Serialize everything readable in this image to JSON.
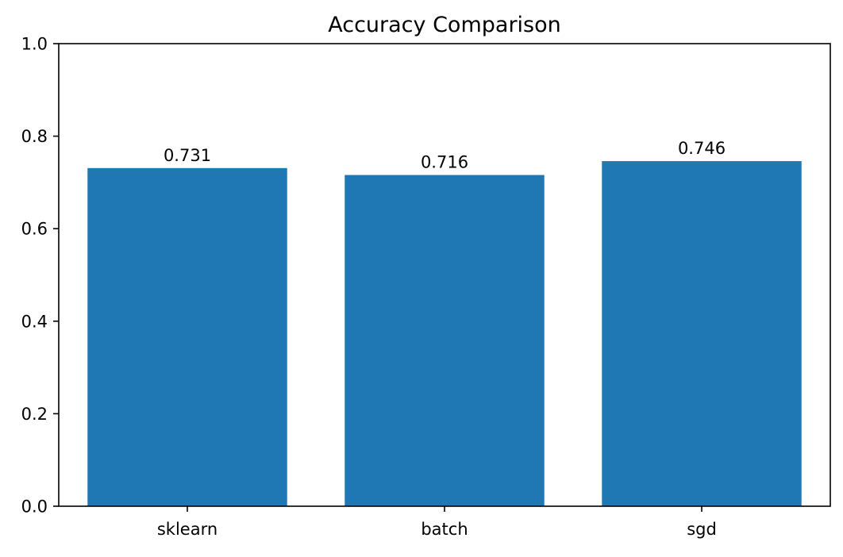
{
  "chart_data": {
    "type": "bar",
    "title": "Accuracy Comparison",
    "xlabel": "",
    "ylabel": "",
    "categories": [
      "sklearn",
      "batch",
      "sgd"
    ],
    "values": [
      0.731,
      0.716,
      0.746
    ],
    "value_labels": [
      "0.731",
      "0.716",
      "0.746"
    ],
    "ylim": [
      0,
      1.0
    ],
    "yticks": [
      0.0,
      0.2,
      0.4,
      0.6,
      0.8,
      1.0
    ],
    "ytick_labels": [
      "0.0",
      "0.2",
      "0.4",
      "0.6",
      "0.8",
      "1.0"
    ],
    "bar_color": "#1f77b4",
    "grid": false,
    "legend": false
  }
}
